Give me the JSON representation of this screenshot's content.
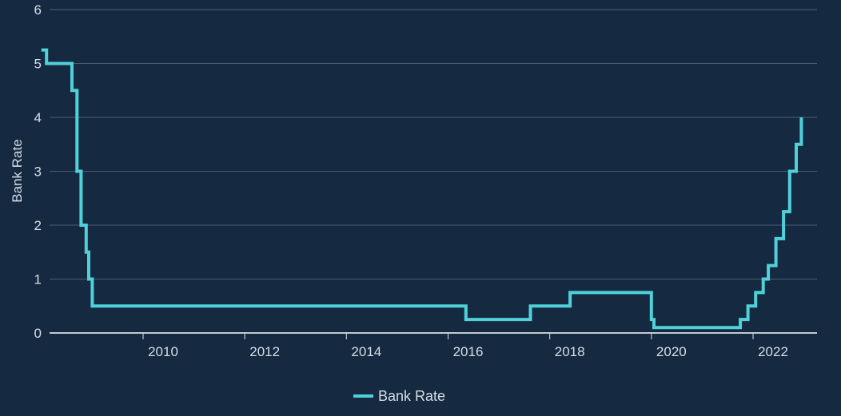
{
  "chart_data": {
    "type": "line",
    "step": true,
    "ylabel": "Bank Rate",
    "xlim": [
      2008.0,
      2022.95
    ],
    "ylim": [
      0,
      6
    ],
    "yticks": [
      0,
      1,
      2,
      3,
      4,
      5,
      6
    ],
    "xticks": [
      2010,
      2012,
      2014,
      2016,
      2018,
      2020,
      2022
    ],
    "grid": true,
    "legend": "bottom-center",
    "colors": {
      "background": "#152a41",
      "series": "#4fd1d9"
    },
    "series": [
      {
        "name": "Bank Rate",
        "points": [
          [
            2008.0,
            5.25
          ],
          [
            2008.1,
            5.0
          ],
          [
            2008.6,
            4.5
          ],
          [
            2008.7,
            3.0
          ],
          [
            2008.78,
            2.0
          ],
          [
            2008.88,
            1.5
          ],
          [
            2008.93,
            1.0
          ],
          [
            2009.0,
            0.5
          ],
          [
            2016.35,
            0.25
          ],
          [
            2017.62,
            0.5
          ],
          [
            2018.4,
            0.75
          ],
          [
            2020.0,
            0.25
          ],
          [
            2020.05,
            0.1
          ],
          [
            2021.75,
            0.25
          ],
          [
            2021.9,
            0.5
          ],
          [
            2022.05,
            0.75
          ],
          [
            2022.2,
            1.0
          ],
          [
            2022.3,
            1.25
          ],
          [
            2022.45,
            1.75
          ],
          [
            2022.6,
            2.25
          ],
          [
            2022.72,
            3.0
          ],
          [
            2022.85,
            3.5
          ],
          [
            2022.95,
            4.0
          ]
        ]
      }
    ]
  }
}
